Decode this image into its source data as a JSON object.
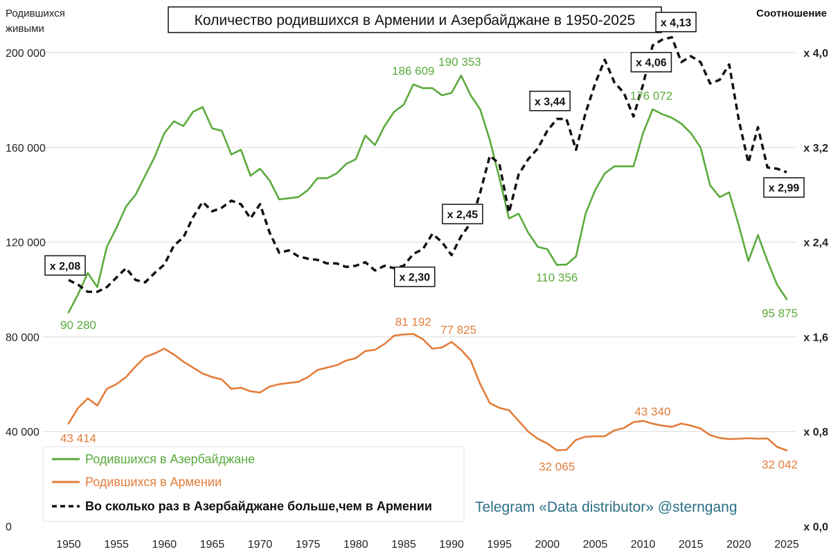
{
  "chart_data": {
    "type": "line",
    "title": "Количество родившихся в Армении и Азербайджане в 1950-2025",
    "ylabel": [
      "Родившихся",
      "живыми"
    ],
    "y2label": "Соотношение",
    "xlim": [
      1950,
      2025
    ],
    "ylim": [
      0,
      200000
    ],
    "y2lim": [
      0,
      4.0
    ],
    "x_ticks": [
      "1950",
      "1955",
      "1960",
      "1965",
      "1970",
      "1975",
      "1980",
      "1985",
      "1990",
      "1995",
      "2000",
      "2005",
      "2010",
      "2015",
      "2020",
      "2025"
    ],
    "y_ticks": [
      "0",
      "40 000",
      "80 000",
      "120 000",
      "160 000",
      "200 000"
    ],
    "y2_ticks": [
      "x 0,0",
      "x 0,8",
      "x 1,6",
      "x 2,4",
      "x 3,2",
      "x 4,0"
    ],
    "x": [
      1950,
      1951,
      1952,
      1953,
      1954,
      1955,
      1956,
      1957,
      1958,
      1959,
      1960,
      1961,
      1962,
      1963,
      1964,
      1965,
      1966,
      1967,
      1968,
      1969,
      1970,
      1971,
      1972,
      1973,
      1974,
      1975,
      1976,
      1977,
      1978,
      1979,
      1980,
      1981,
      1982,
      1983,
      1984,
      1985,
      1986,
      1987,
      1988,
      1989,
      1990,
      1991,
      1992,
      1993,
      1994,
      1995,
      1996,
      1997,
      1998,
      1999,
      2000,
      2001,
      2002,
      2003,
      2004,
      2005,
      2006,
      2007,
      2008,
      2009,
      2010,
      2011,
      2012,
      2013,
      2014,
      2015,
      2016,
      2017,
      2018,
      2019,
      2020,
      2021,
      2022,
      2023,
      2024,
      2025
    ],
    "series": [
      {
        "name": "Родившихся в Азербайджане",
        "color": "#5aaa3c",
        "values": [
          90280,
          98000,
          107000,
          101000,
          118000,
          126000,
          135000,
          140000,
          148000,
          156000,
          166000,
          171000,
          169000,
          175000,
          177000,
          168000,
          167000,
          157000,
          159000,
          148000,
          151000,
          146000,
          138000,
          138500,
          139000,
          142000,
          147000,
          147000,
          149000,
          153000,
          155000,
          165000,
          161000,
          169000,
          175000,
          178000,
          186609,
          185000,
          185000,
          182000,
          183000,
          190353,
          182000,
          176000,
          163000,
          147000,
          130000,
          132000,
          124000,
          118000,
          117000,
          110356,
          110500,
          114000,
          132000,
          142000,
          149000,
          152000,
          152000,
          152000,
          166000,
          176072,
          174000,
          172500,
          170000,
          166000,
          160000,
          144000,
          139000,
          141000,
          127000,
          112000,
          123000,
          112000,
          102000,
          95875
        ]
      },
      {
        "name": "Родившихся в Армении",
        "color": "#e27c3a",
        "values": [
          43414,
          50000,
          54000,
          51000,
          58000,
          60000,
          63000,
          67500,
          71500,
          73000,
          75000,
          72500,
          69500,
          67000,
          64500,
          63000,
          62000,
          58000,
          58500,
          57000,
          56500,
          59000,
          60000,
          60500,
          61000,
          63000,
          66000,
          67000,
          68000,
          70000,
          71000,
          74000,
          74500,
          77000,
          80500,
          81000,
          81192,
          79000,
          75000,
          75500,
          77825,
          74500,
          70000,
          60000,
          52000,
          50000,
          49000,
          44500,
          40000,
          37000,
          35000,
          32065,
          32300,
          36500,
          37800,
          38000,
          38000,
          40500,
          41500,
          44000,
          44500,
          43340,
          42500,
          42000,
          43400,
          42500,
          41300,
          38500,
          37300,
          36800,
          37000,
          37200,
          37000,
          37100,
          33500,
          32042
        ]
      },
      {
        "name": "Во сколько раз в Азербайджане больше,чем в Армении",
        "color": "#111111",
        "dashed": true,
        "axis": "right",
        "values": [
          2.08,
          2.04,
          1.98,
          1.98,
          2.02,
          2.1,
          2.18,
          2.08,
          2.06,
          2.14,
          2.21,
          2.37,
          2.44,
          2.61,
          2.74,
          2.66,
          2.69,
          2.75,
          2.72,
          2.6,
          2.72,
          2.48,
          2.31,
          2.33,
          2.28,
          2.26,
          2.25,
          2.22,
          2.22,
          2.19,
          2.2,
          2.23,
          2.16,
          2.2,
          2.18,
          2.2,
          2.3,
          2.34,
          2.47,
          2.4,
          2.29,
          2.45,
          2.56,
          2.82,
          3.13,
          3.06,
          2.65,
          2.97,
          3.1,
          3.19,
          3.34,
          3.44,
          3.44,
          3.18,
          3.49,
          3.74,
          3.94,
          3.75,
          3.66,
          3.46,
          3.73,
          4.06,
          4.11,
          4.13,
          3.92,
          3.97,
          3.92,
          3.74,
          3.77,
          3.9,
          3.43,
          3.07,
          3.37,
          3.03,
          3.02,
          2.99
        ]
      }
    ],
    "data_labels": {
      "azerbaijan": [
        {
          "year": 1950,
          "text": "90 280"
        },
        {
          "year": 1986,
          "text": "186 609"
        },
        {
          "year": 1991,
          "text": "190 353"
        },
        {
          "year": 2001,
          "text": "110 356"
        },
        {
          "year": 2011,
          "text": "176 072"
        },
        {
          "year": 2025,
          "text": "95 875"
        }
      ],
      "armenia": [
        {
          "year": 1950,
          "text": "43 414"
        },
        {
          "year": 1986,
          "text": "81 192"
        },
        {
          "year": 1990,
          "text": "77 825"
        },
        {
          "year": 2001,
          "text": "32 065"
        },
        {
          "year": 2011,
          "text": "43 340"
        },
        {
          "year": 2025,
          "text": "32 042"
        }
      ],
      "ratio": [
        {
          "year": 1950,
          "text": "x 2,08"
        },
        {
          "year": 1986,
          "text": "x 2,30"
        },
        {
          "year": 1991,
          "text": "x 2,45"
        },
        {
          "year": 2001,
          "text": "x 3,44"
        },
        {
          "year": 2011,
          "text": "x 4,06"
        },
        {
          "year": 2013,
          "text": "x 4,13"
        },
        {
          "year": 2025,
          "text": "x 2,99"
        }
      ]
    },
    "legend": {
      "placement": "bottom-left",
      "items": [
        "Родившихся в Азербайджане",
        "Родившихся в Армении",
        "Во сколько раз в Азербайджане больше,чем в Армении"
      ]
    },
    "credit": "Telegram «Data distributor» @sterngang",
    "grid": true
  }
}
